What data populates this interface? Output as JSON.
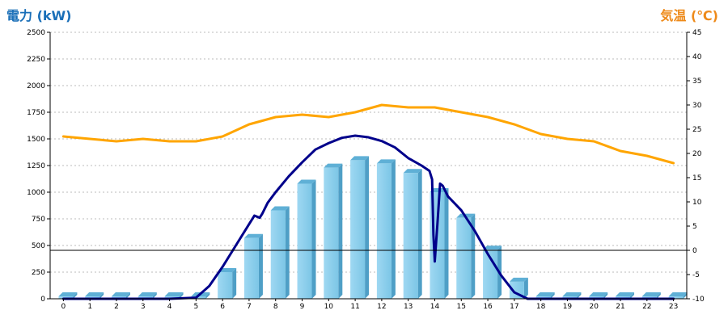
{
  "chart_data": {
    "type": "bar",
    "left_axis_label": "電力 (kW)",
    "right_axis_label": "気温 (℃)",
    "categories": [
      "0",
      "1",
      "2",
      "3",
      "4",
      "5",
      "6",
      "7",
      "8",
      "9",
      "10",
      "11",
      "12",
      "13",
      "14",
      "15",
      "16",
      "17",
      "18",
      "19",
      "20",
      "21",
      "22",
      "23"
    ],
    "y_left": {
      "min": 0,
      "max": 2500,
      "ticks": [
        0,
        250,
        500,
        750,
        1000,
        1250,
        1500,
        1750,
        2000,
        2250,
        2500
      ]
    },
    "y_right": {
      "min": -10,
      "max": 45,
      "ticks": [
        -10,
        -5,
        0,
        5,
        10,
        15,
        20,
        25,
        30,
        35,
        40,
        45
      ]
    },
    "grid": true,
    "series": [
      {
        "kind": "bar",
        "axis": "left",
        "color": "#87ceeb",
        "values": [
          0,
          0,
          0,
          0,
          0,
          20,
          250,
          570,
          830,
          1080,
          1230,
          1300,
          1270,
          1180,
          1000,
          760,
          460,
          160,
          0,
          0,
          0,
          0,
          0,
          0
        ]
      },
      {
        "kind": "line",
        "axis": "left",
        "color": "#00008b",
        "x": [
          0,
          4,
          5,
          5.5,
          6,
          6.5,
          7,
          7.2,
          7.4,
          7.5,
          7.7,
          8,
          8.5,
          9,
          9.5,
          10,
          10.5,
          11,
          11.5,
          12,
          12.5,
          13,
          13.5,
          13.8,
          13.9,
          13.95,
          14,
          14.1,
          14.2,
          14.3,
          14.5,
          15,
          15.5,
          16,
          16.5,
          17,
          17.5,
          18,
          23
        ],
        "y": [
          0,
          0,
          10,
          120,
          300,
          500,
          700,
          780,
          760,
          800,
          900,
          1000,
          1150,
          1280,
          1400,
          1460,
          1510,
          1530,
          1515,
          1480,
          1420,
          1320,
          1250,
          1200,
          1120,
          600,
          350,
          700,
          1080,
          1060,
          960,
          830,
          640,
          420,
          220,
          60,
          0,
          0,
          0
        ]
      },
      {
        "kind": "line",
        "axis": "right",
        "color": "#ffa500",
        "values": [
          23.5,
          23,
          22.5,
          23,
          22.5,
          22.5,
          23.5,
          26,
          27.5,
          28,
          27.5,
          28.5,
          30,
          29.5,
          29.5,
          28.5,
          27.5,
          26,
          24,
          23,
          22.5,
          20.5,
          19.5,
          18
        ]
      }
    ]
  }
}
